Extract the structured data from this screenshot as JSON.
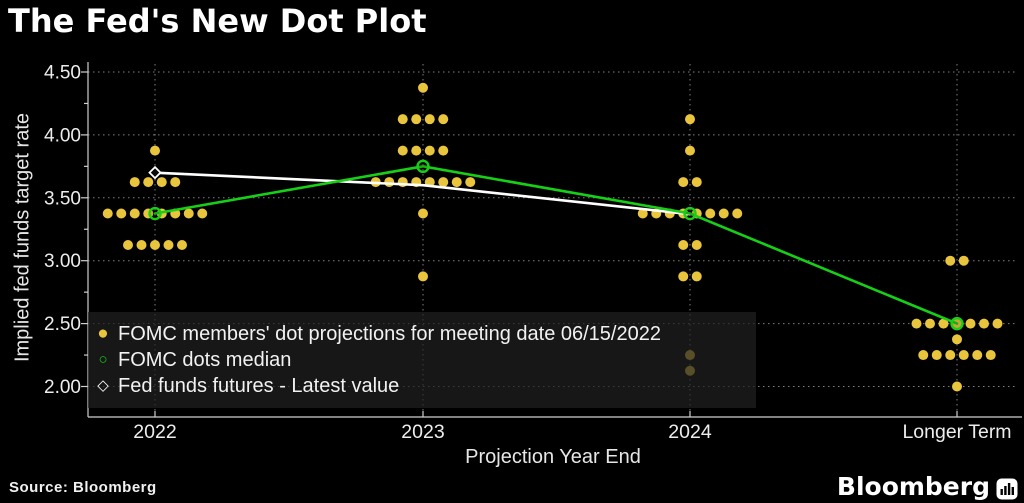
{
  "title": "The Fed's New Dot Plot",
  "source_line": "Source: Bloomberg",
  "brand": {
    "wordmark": "Bloomberg",
    "icon": "bar-chart-icon"
  },
  "colors": {
    "background": "#000000",
    "dots": "#e8c53c",
    "median_line": "#17cf17",
    "futures_line": "#ffffff",
    "grid": "#cfcfcf",
    "text": "#ededed",
    "legend_background": "rgba(32,32,32,0.72)"
  },
  "legend": {
    "items": [
      {
        "marker": "filled-circle",
        "color": "#e8c53c",
        "label": "FOMC members' dot projections for meeting date 06/15/2022"
      },
      {
        "marker": "open-circle",
        "color": "#17cf17",
        "label": "FOMC dots median"
      },
      {
        "marker": "open-diamond",
        "color": "#ffffff",
        "label": "Fed funds futures - Latest value"
      }
    ]
  },
  "y_axis": {
    "title": "Implied fed funds target rate",
    "tick_labels": [
      "2.00",
      "2.50",
      "3.00",
      "3.50",
      "4.00",
      "4.50"
    ]
  },
  "x_axis": {
    "title": "Projection Year End",
    "tick_labels": [
      "2022",
      "2023",
      "2024",
      "Longer Term"
    ]
  },
  "chart_data": {
    "type": "scatter",
    "title": "The Fed's New Dot Plot",
    "xlabel": "Projection Year End",
    "ylabel": "Implied fed funds target rate",
    "categories": [
      "2022",
      "2023",
      "2024",
      "Longer Term"
    ],
    "y_ticks": [
      2.0,
      2.5,
      3.0,
      3.5,
      4.0,
      4.5
    ],
    "y_minor_step": 0.25,
    "ylim": [
      1.9,
      4.6
    ],
    "grid": "dotted major gridlines, both axes",
    "legend_position": "inside lower-left",
    "series": [
      {
        "name": "FOMC members' dot projections for meeting date 06/15/2022",
        "type": "dot-rows",
        "marker": "filled-circle",
        "color": "#e8c53c",
        "dots": [
          {
            "category": "2022",
            "rate": 3.875,
            "count": 1
          },
          {
            "category": "2022",
            "rate": 3.625,
            "count": 4
          },
          {
            "category": "2022",
            "rate": 3.375,
            "count": 8
          },
          {
            "category": "2022",
            "rate": 3.125,
            "count": 5
          },
          {
            "category": "2023",
            "rate": 4.375,
            "count": 1
          },
          {
            "category": "2023",
            "rate": 4.125,
            "count": 4
          },
          {
            "category": "2023",
            "rate": 3.875,
            "count": 4
          },
          {
            "category": "2023",
            "rate": 3.625,
            "count": 8
          },
          {
            "category": "2023",
            "rate": 3.375,
            "count": 1
          },
          {
            "category": "2023",
            "rate": 2.875,
            "count": 1
          },
          {
            "category": "2024",
            "rate": 4.125,
            "count": 1
          },
          {
            "category": "2024",
            "rate": 3.875,
            "count": 1
          },
          {
            "category": "2024",
            "rate": 3.625,
            "count": 2
          },
          {
            "category": "2024",
            "rate": 3.375,
            "count": 8
          },
          {
            "category": "2024",
            "rate": 3.125,
            "count": 2
          },
          {
            "category": "2024",
            "rate": 2.875,
            "count": 2
          },
          {
            "category": "2024",
            "rate": 2.25,
            "count": 1
          },
          {
            "category": "2024",
            "rate": 2.125,
            "count": 1
          },
          {
            "category": "Longer Term",
            "rate": 3.0,
            "count": 2
          },
          {
            "category": "Longer Term",
            "rate": 2.5,
            "count": 7
          },
          {
            "category": "Longer Term",
            "rate": 2.375,
            "count": 1
          },
          {
            "category": "Longer Term",
            "rate": 2.25,
            "count": 6
          },
          {
            "category": "Longer Term",
            "rate": 2.0,
            "count": 1
          }
        ]
      },
      {
        "name": "FOMC dots median",
        "type": "line",
        "marker": "open-circle",
        "color": "#17cf17",
        "categories": [
          "2022",
          "2023",
          "2024",
          "Longer Term"
        ],
        "values": [
          3.375,
          3.75,
          3.375,
          2.5
        ]
      },
      {
        "name": "Fed funds futures - Latest value",
        "type": "line",
        "marker": "open-diamond-at-first-point",
        "color": "#ffffff",
        "categories": [
          "2022",
          "2023",
          "2024"
        ],
        "values": [
          3.7,
          3.6,
          3.37
        ]
      }
    ]
  }
}
